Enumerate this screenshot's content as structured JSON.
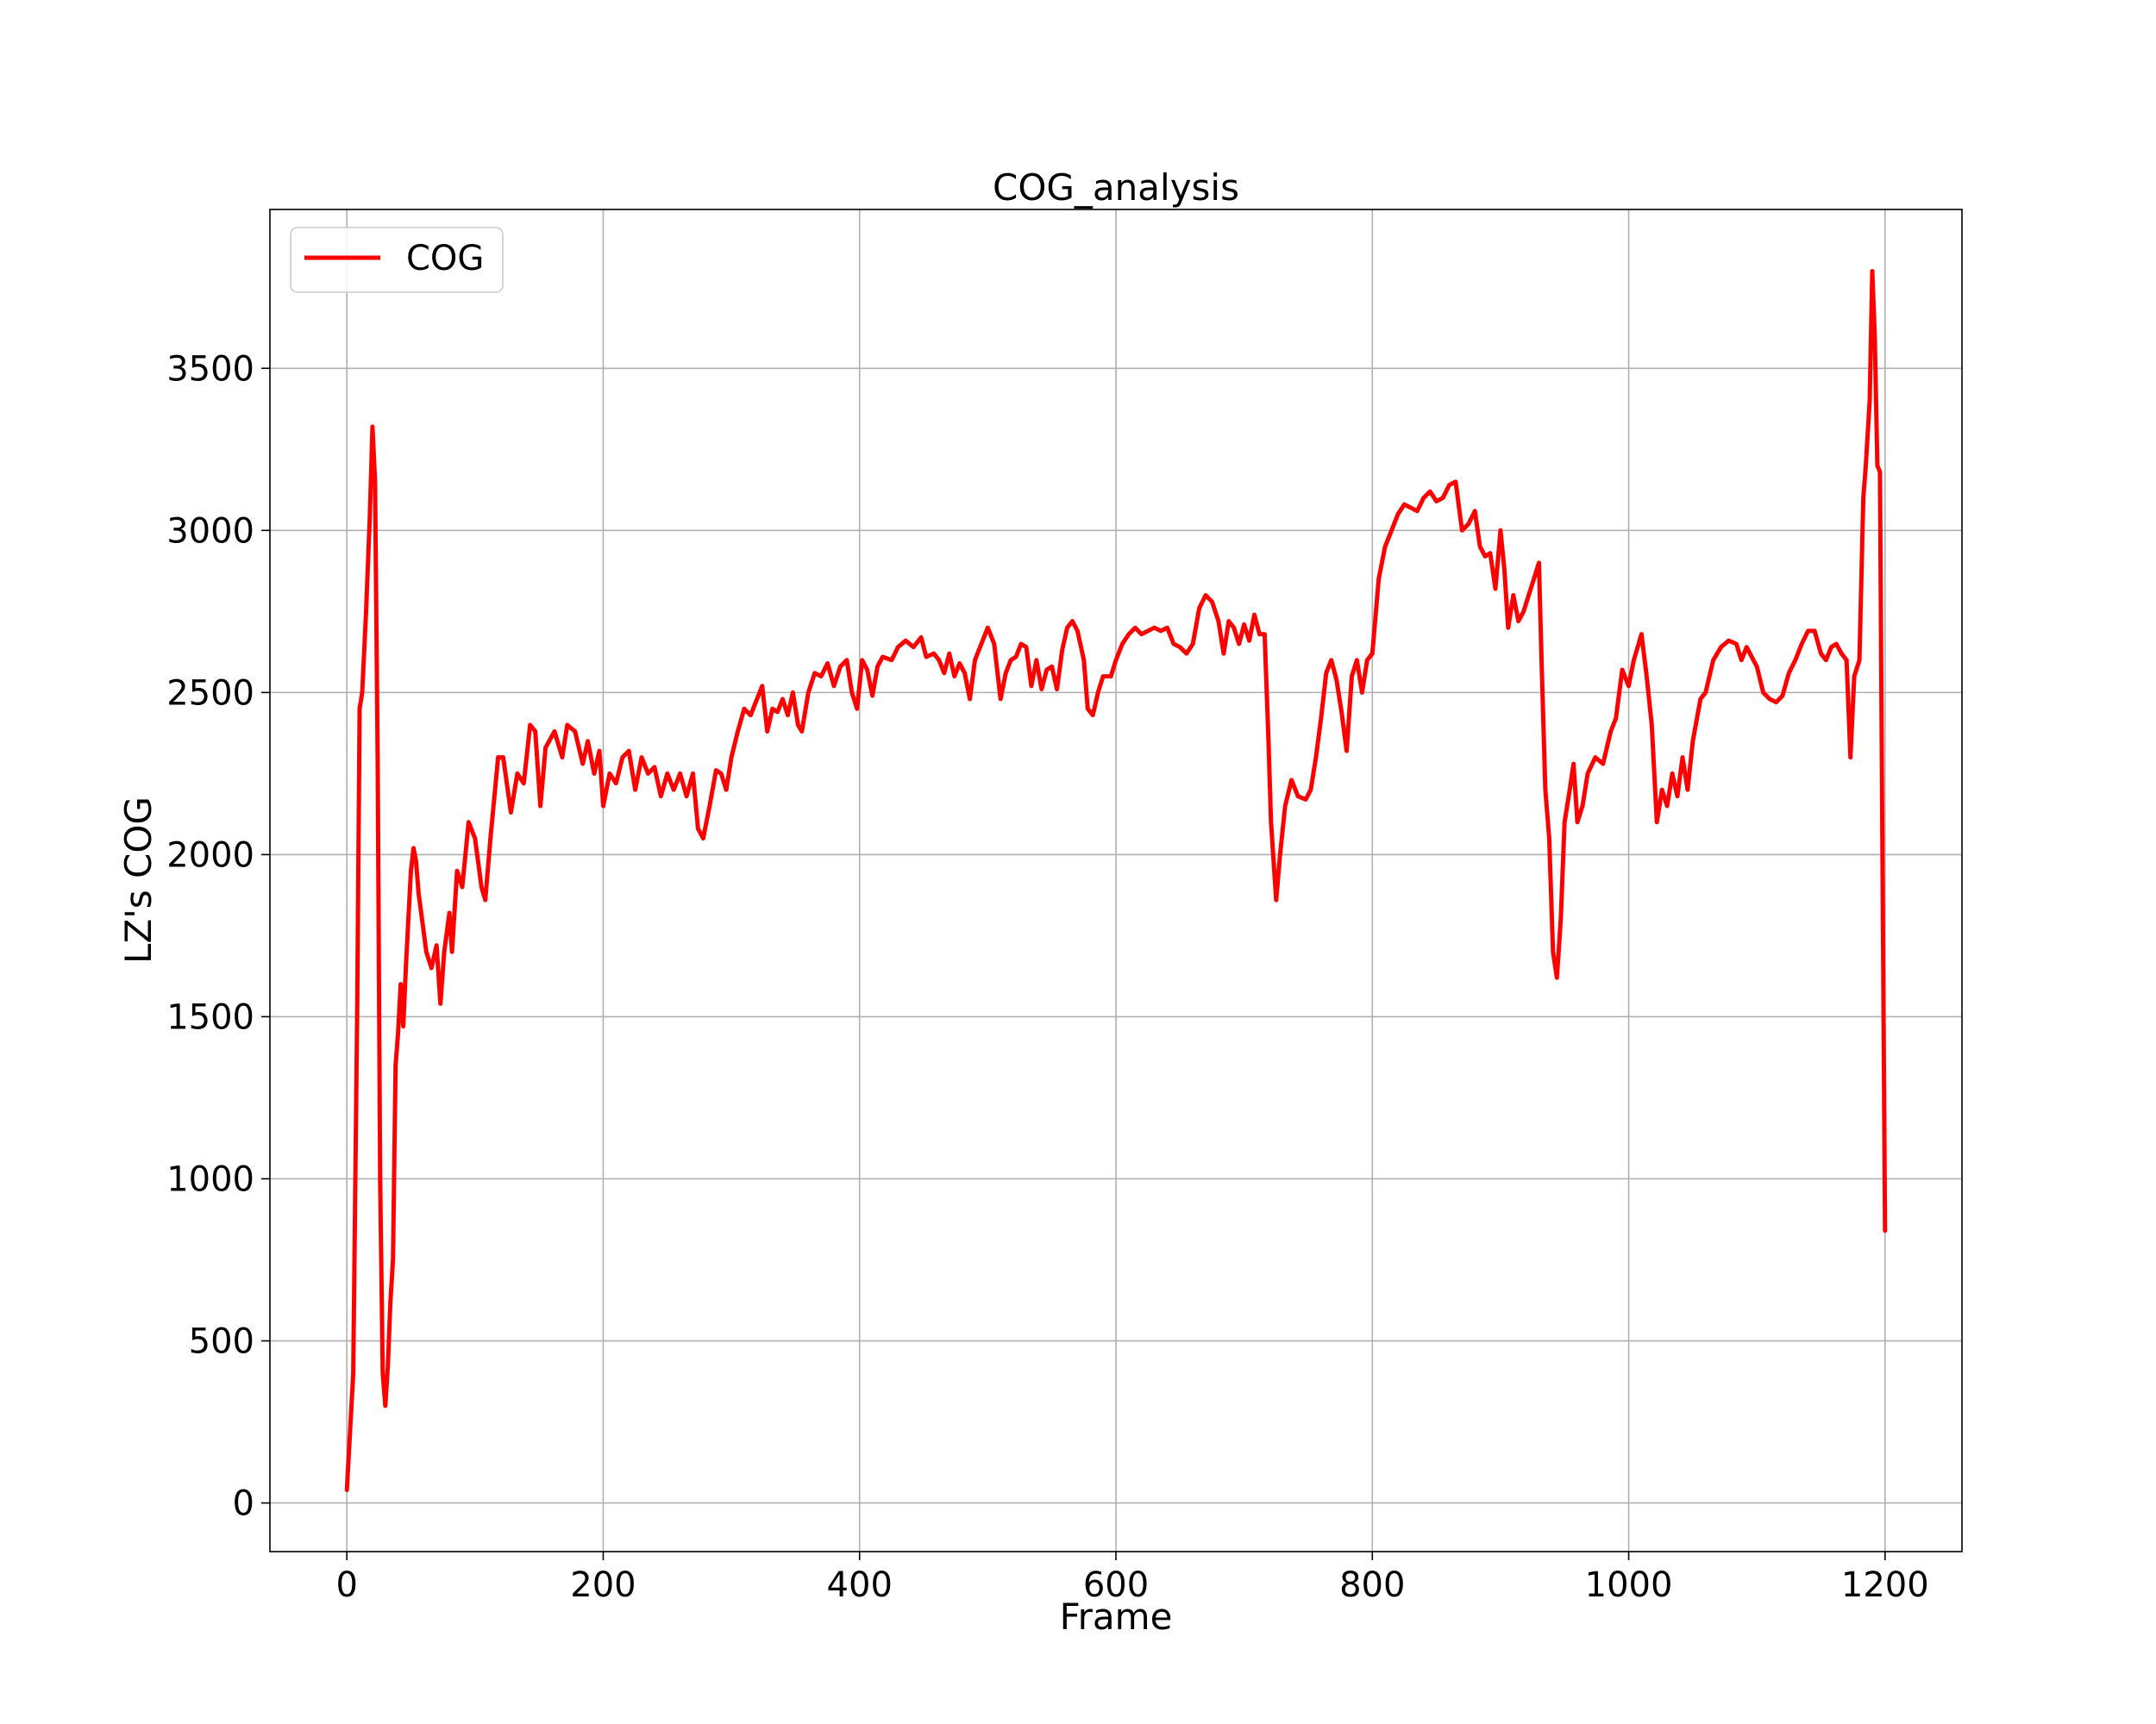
{
  "chart_data": {
    "type": "line",
    "title": "COG_analysis",
    "xlabel": "Frame",
    "ylabel": "LZ's COG",
    "xlim": [
      -60,
      1260
    ],
    "ylim": [
      -150,
      3990
    ],
    "xticks": [
      0,
      200,
      400,
      600,
      800,
      1000,
      1200
    ],
    "yticks": [
      0,
      500,
      1000,
      1500,
      2000,
      2500,
      3000,
      3500
    ],
    "grid": true,
    "legend_position": "upper-left",
    "series": [
      {
        "name": "COG",
        "color": "#ff0000",
        "points": [
          [
            0,
            40
          ],
          [
            5,
            400
          ],
          [
            8,
            1500
          ],
          [
            10,
            2450
          ],
          [
            12,
            2500
          ],
          [
            15,
            2750
          ],
          [
            18,
            3050
          ],
          [
            20,
            3320
          ],
          [
            22,
            3150
          ],
          [
            24,
            2300
          ],
          [
            26,
            1000
          ],
          [
            28,
            400
          ],
          [
            30,
            300
          ],
          [
            32,
            420
          ],
          [
            34,
            620
          ],
          [
            36,
            750
          ],
          [
            38,
            1350
          ],
          [
            40,
            1450
          ],
          [
            42,
            1600
          ],
          [
            44,
            1470
          ],
          [
            46,
            1650
          ],
          [
            48,
            1800
          ],
          [
            50,
            1950
          ],
          [
            52,
            2020
          ],
          [
            54,
            1980
          ],
          [
            56,
            1880
          ],
          [
            58,
            1820
          ],
          [
            62,
            1700
          ],
          [
            66,
            1650
          ],
          [
            70,
            1720
          ],
          [
            73,
            1540
          ],
          [
            76,
            1700
          ],
          [
            80,
            1820
          ],
          [
            82,
            1700
          ],
          [
            86,
            1950
          ],
          [
            90,
            1900
          ],
          [
            95,
            2100
          ],
          [
            100,
            2050
          ],
          [
            105,
            1900
          ],
          [
            108,
            1860
          ],
          [
            112,
            2050
          ],
          [
            118,
            2300
          ],
          [
            122,
            2300
          ],
          [
            128,
            2130
          ],
          [
            133,
            2250
          ],
          [
            138,
            2220
          ],
          [
            143,
            2400
          ],
          [
            147,
            2380
          ],
          [
            151,
            2150
          ],
          [
            155,
            2330
          ],
          [
            162,
            2380
          ],
          [
            168,
            2300
          ],
          [
            172,
            2400
          ],
          [
            178,
            2380
          ],
          [
            184,
            2280
          ],
          [
            188,
            2350
          ],
          [
            193,
            2250
          ],
          [
            197,
            2320
          ],
          [
            200,
            2150
          ],
          [
            205,
            2250
          ],
          [
            210,
            2220
          ],
          [
            215,
            2300
          ],
          [
            220,
            2320
          ],
          [
            225,
            2200
          ],
          [
            230,
            2300
          ],
          [
            235,
            2250
          ],
          [
            240,
            2270
          ],
          [
            245,
            2180
          ],
          [
            250,
            2250
          ],
          [
            255,
            2200
          ],
          [
            260,
            2250
          ],
          [
            265,
            2180
          ],
          [
            270,
            2250
          ],
          [
            274,
            2080
          ],
          [
            278,
            2050
          ],
          [
            283,
            2150
          ],
          [
            288,
            2260
          ],
          [
            292,
            2250
          ],
          [
            296,
            2200
          ],
          [
            300,
            2300
          ],
          [
            305,
            2380
          ],
          [
            310,
            2450
          ],
          [
            315,
            2430
          ],
          [
            320,
            2480
          ],
          [
            324,
            2520
          ],
          [
            328,
            2380
          ],
          [
            332,
            2450
          ],
          [
            336,
            2440
          ],
          [
            340,
            2480
          ],
          [
            344,
            2430
          ],
          [
            348,
            2500
          ],
          [
            352,
            2400
          ],
          [
            355,
            2380
          ],
          [
            360,
            2500
          ],
          [
            365,
            2560
          ],
          [
            370,
            2550
          ],
          [
            375,
            2590
          ],
          [
            380,
            2520
          ],
          [
            385,
            2580
          ],
          [
            390,
            2600
          ],
          [
            394,
            2500
          ],
          [
            398,
            2450
          ],
          [
            402,
            2600
          ],
          [
            406,
            2570
          ],
          [
            410,
            2490
          ],
          [
            414,
            2580
          ],
          [
            418,
            2610
          ],
          [
            425,
            2600
          ],
          [
            430,
            2640
          ],
          [
            436,
            2660
          ],
          [
            442,
            2640
          ],
          [
            448,
            2670
          ],
          [
            452,
            2610
          ],
          [
            458,
            2620
          ],
          [
            462,
            2600
          ],
          [
            466,
            2560
          ],
          [
            470,
            2620
          ],
          [
            474,
            2550
          ],
          [
            478,
            2590
          ],
          [
            482,
            2560
          ],
          [
            486,
            2480
          ],
          [
            490,
            2600
          ],
          [
            495,
            2650
          ],
          [
            500,
            2700
          ],
          [
            505,
            2650
          ],
          [
            510,
            2480
          ],
          [
            514,
            2560
          ],
          [
            518,
            2600
          ],
          [
            522,
            2610
          ],
          [
            526,
            2650
          ],
          [
            530,
            2640
          ],
          [
            534,
            2520
          ],
          [
            538,
            2600
          ],
          [
            542,
            2510
          ],
          [
            546,
            2570
          ],
          [
            550,
            2580
          ],
          [
            554,
            2510
          ],
          [
            558,
            2630
          ],
          [
            562,
            2700
          ],
          [
            566,
            2720
          ],
          [
            570,
            2690
          ],
          [
            575,
            2600
          ],
          [
            578,
            2450
          ],
          [
            582,
            2430
          ],
          [
            586,
            2500
          ],
          [
            590,
            2550
          ],
          [
            596,
            2550
          ],
          [
            600,
            2600
          ],
          [
            605,
            2650
          ],
          [
            610,
            2680
          ],
          [
            615,
            2700
          ],
          [
            620,
            2680
          ],
          [
            625,
            2690
          ],
          [
            630,
            2700
          ],
          [
            635,
            2690
          ],
          [
            640,
            2700
          ],
          [
            645,
            2650
          ],
          [
            650,
            2640
          ],
          [
            655,
            2620
          ],
          [
            660,
            2650
          ],
          [
            665,
            2760
          ],
          [
            670,
            2800
          ],
          [
            675,
            2780
          ],
          [
            680,
            2720
          ],
          [
            684,
            2620
          ],
          [
            688,
            2720
          ],
          [
            692,
            2700
          ],
          [
            696,
            2650
          ],
          [
            700,
            2710
          ],
          [
            704,
            2660
          ],
          [
            708,
            2740
          ],
          [
            712,
            2680
          ],
          [
            716,
            2680
          ],
          [
            719,
            2350
          ],
          [
            721,
            2100
          ],
          [
            723,
            1980
          ],
          [
            725,
            1860
          ],
          [
            728,
            2000
          ],
          [
            732,
            2150
          ],
          [
            737,
            2230
          ],
          [
            742,
            2180
          ],
          [
            748,
            2170
          ],
          [
            752,
            2200
          ],
          [
            756,
            2300
          ],
          [
            760,
            2420
          ],
          [
            764,
            2560
          ],
          [
            768,
            2600
          ],
          [
            772,
            2540
          ],
          [
            776,
            2440
          ],
          [
            780,
            2320
          ],
          [
            784,
            2550
          ],
          [
            788,
            2600
          ],
          [
            792,
            2500
          ],
          [
            796,
            2600
          ],
          [
            800,
            2620
          ],
          [
            805,
            2850
          ],
          [
            810,
            2950
          ],
          [
            815,
            3000
          ],
          [
            820,
            3050
          ],
          [
            825,
            3080
          ],
          [
            830,
            3070
          ],
          [
            835,
            3060
          ],
          [
            840,
            3100
          ],
          [
            845,
            3120
          ],
          [
            850,
            3090
          ],
          [
            855,
            3100
          ],
          [
            860,
            3140
          ],
          [
            865,
            3150
          ],
          [
            870,
            3000
          ],
          [
            875,
            3020
          ],
          [
            880,
            3060
          ],
          [
            884,
            2950
          ],
          [
            888,
            2920
          ],
          [
            892,
            2930
          ],
          [
            896,
            2820
          ],
          [
            900,
            3000
          ],
          [
            903,
            2880
          ],
          [
            906,
            2700
          ],
          [
            910,
            2800
          ],
          [
            914,
            2720
          ],
          [
            918,
            2750
          ],
          [
            922,
            2800
          ],
          [
            926,
            2850
          ],
          [
            930,
            2900
          ],
          [
            932,
            2600
          ],
          [
            935,
            2200
          ],
          [
            938,
            2050
          ],
          [
            941,
            1700
          ],
          [
            944,
            1620
          ],
          [
            947,
            1800
          ],
          [
            950,
            2100
          ],
          [
            954,
            2200
          ],
          [
            957,
            2280
          ],
          [
            960,
            2100
          ],
          [
            964,
            2150
          ],
          [
            968,
            2250
          ],
          [
            974,
            2300
          ],
          [
            980,
            2280
          ],
          [
            986,
            2380
          ],
          [
            990,
            2420
          ],
          [
            995,
            2570
          ],
          [
            1000,
            2520
          ],
          [
            1004,
            2600
          ],
          [
            1010,
            2680
          ],
          [
            1014,
            2550
          ],
          [
            1018,
            2400
          ],
          [
            1022,
            2100
          ],
          [
            1026,
            2200
          ],
          [
            1030,
            2150
          ],
          [
            1034,
            2250
          ],
          [
            1038,
            2180
          ],
          [
            1042,
            2300
          ],
          [
            1046,
            2200
          ],
          [
            1050,
            2350
          ],
          [
            1056,
            2480
          ],
          [
            1060,
            2500
          ],
          [
            1066,
            2600
          ],
          [
            1072,
            2640
          ],
          [
            1078,
            2660
          ],
          [
            1084,
            2650
          ],
          [
            1088,
            2600
          ],
          [
            1092,
            2640
          ],
          [
            1096,
            2610
          ],
          [
            1100,
            2580
          ],
          [
            1105,
            2500
          ],
          [
            1110,
            2480
          ],
          [
            1115,
            2470
          ],
          [
            1120,
            2490
          ],
          [
            1125,
            2560
          ],
          [
            1130,
            2600
          ],
          [
            1135,
            2650
          ],
          [
            1140,
            2690
          ],
          [
            1145,
            2690
          ],
          [
            1150,
            2620
          ],
          [
            1154,
            2600
          ],
          [
            1158,
            2640
          ],
          [
            1162,
            2650
          ],
          [
            1166,
            2620
          ],
          [
            1170,
            2600
          ],
          [
            1173,
            2300
          ],
          [
            1176,
            2550
          ],
          [
            1180,
            2600
          ],
          [
            1183,
            3100
          ],
          [
            1185,
            3200
          ],
          [
            1188,
            3400
          ],
          [
            1190,
            3800
          ],
          [
            1192,
            3600
          ],
          [
            1194,
            3200
          ],
          [
            1196,
            3180
          ],
          [
            1198,
            2000
          ],
          [
            1200,
            840
          ]
        ]
      }
    ]
  }
}
